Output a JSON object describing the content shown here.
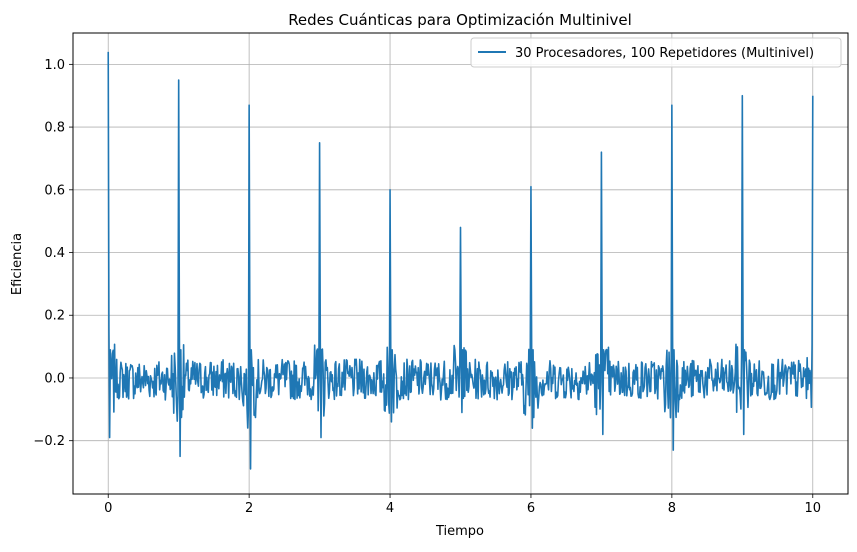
{
  "chart_data": {
    "type": "line",
    "title": "Redes Cuánticas para Optimización Multinivel",
    "xlabel": "Tiempo",
    "ylabel": "Eficiencia",
    "xlim": [
      -0.5,
      10.5
    ],
    "ylim": [
      -0.37,
      1.1
    ],
    "grid": true,
    "legend_placement": "top-right",
    "xticks": [
      0,
      2,
      4,
      6,
      8,
      10
    ],
    "xtick_labels": [
      "0",
      "2",
      "4",
      "6",
      "8",
      "10"
    ],
    "yticks": [
      -0.2,
      0.0,
      0.2,
      0.4,
      0.6,
      0.8,
      1.0
    ],
    "ytick_labels": [
      "−0.2",
      "0.0",
      "0.2",
      "0.4",
      "0.6",
      "0.8",
      "1.0"
    ],
    "series": [
      {
        "name": "30 Procesadores, 100 Repetidores (Multinivel)",
        "color": "#1f77b4",
        "peaks": [
          {
            "x": 0,
            "max": 1.04,
            "min": -0.19
          },
          {
            "x": 1,
            "max": 0.95,
            "min": -0.25
          },
          {
            "x": 2,
            "max": 0.87,
            "min": -0.29
          },
          {
            "x": 3,
            "max": 0.75,
            "min": -0.19
          },
          {
            "x": 4,
            "max": 0.6,
            "min": -0.14
          },
          {
            "x": 5,
            "max": 0.48,
            "min": -0.11
          },
          {
            "x": 6,
            "max": 0.61,
            "min": -0.16
          },
          {
            "x": 7,
            "max": 0.72,
            "min": -0.18
          },
          {
            "x": 8,
            "max": 0.87,
            "min": -0.23
          },
          {
            "x": 9,
            "max": 0.9,
            "min": -0.18
          },
          {
            "x": 10,
            "max": 0.9,
            "min": -0.17
          }
        ],
        "baseline_noise_range": [
          -0.08,
          0.05
        ]
      }
    ]
  }
}
